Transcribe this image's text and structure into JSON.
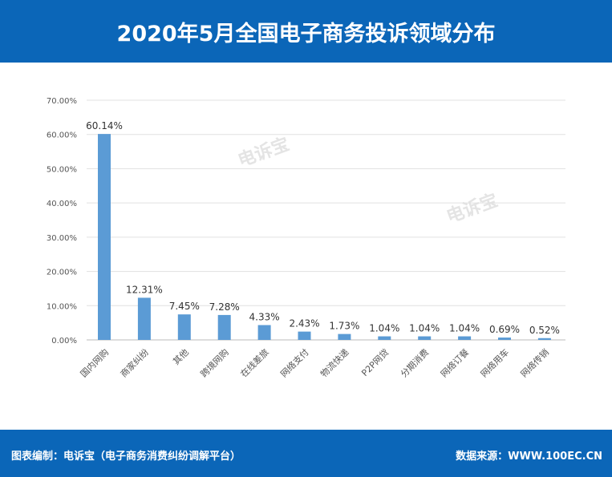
{
  "header": {
    "title": "2020年5月全国电子商务投诉领域分布"
  },
  "footer": {
    "left": "图表编制：电诉宝（电子商务消费纠纷调解平台）",
    "right": "数据来源：WWW.100EC.CN"
  },
  "watermark": "电诉宝",
  "chart_data": {
    "type": "bar",
    "categories": [
      "国内网购",
      "商家纠纷",
      "其他",
      "跨境网购",
      "在线差旅",
      "网络支付",
      "物流快递",
      "P2P网贷",
      "分期消费",
      "网络订餐",
      "网络用车",
      "网络传销"
    ],
    "values": [
      60.14,
      12.31,
      7.45,
      7.28,
      4.33,
      2.43,
      1.73,
      1.04,
      1.04,
      1.04,
      0.69,
      0.52
    ],
    "data_labels": [
      "60.14%",
      "12.31%",
      "7.45%",
      "7.28%",
      "4.33%",
      "2.43%",
      "1.73%",
      "1.04%",
      "1.04%",
      "1.04%",
      "0.69%",
      "0.52%"
    ],
    "yticks": [
      "0.00%",
      "10.00%",
      "20.00%",
      "30.00%",
      "40.00%",
      "50.00%",
      "60.00%",
      "70.00%"
    ],
    "ylim": [
      0,
      70
    ],
    "grid": true,
    "bar_color": "#5b9bd5"
  }
}
